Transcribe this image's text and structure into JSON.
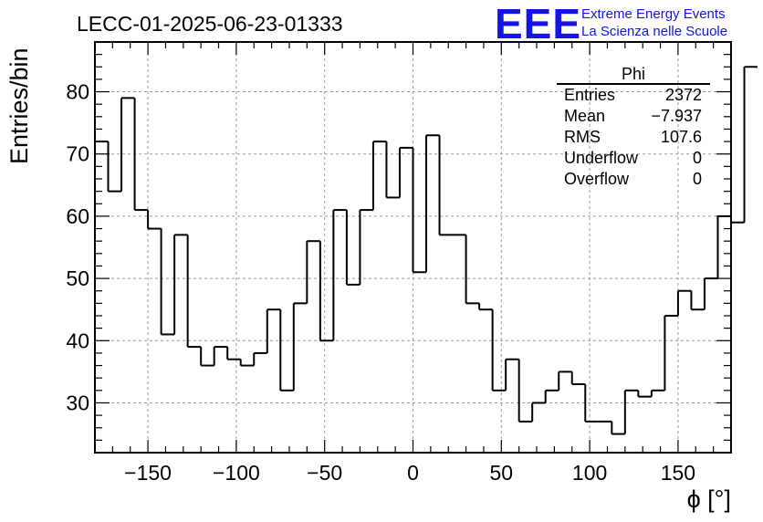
{
  "chart_data": {
    "type": "bar",
    "title": "LECC-01-2025-06-23-01333",
    "xlabel": "ϕ [°]",
    "ylabel": "Entries/bin",
    "xlim": [
      -180,
      180
    ],
    "ylim": [
      22,
      88
    ],
    "grid": true,
    "xticks": [
      -150,
      -100,
      -50,
      0,
      50,
      100,
      150
    ],
    "xtick_labels": [
      "−150",
      "−100",
      "−50",
      "0",
      "50",
      "100",
      "150"
    ],
    "yticks": [
      30,
      40,
      50,
      60,
      70,
      80
    ],
    "bin_edges_start": -180,
    "bin_width": 7.5,
    "values": [
      72,
      64,
      79,
      61,
      58,
      41,
      57,
      39,
      36,
      39,
      37,
      36,
      38,
      45,
      32,
      46,
      56,
      40,
      61,
      49,
      61,
      72,
      63,
      71,
      51,
      73,
      57,
      57,
      46,
      45,
      32,
      37,
      27,
      30,
      32,
      35,
      33,
      27,
      27,
      25,
      32,
      31,
      32,
      44,
      48,
      45,
      50,
      60,
      59,
      84
    ],
    "stats_box": {
      "name": "Phi",
      "rows": [
        {
          "label": "Entries",
          "value": "2372"
        },
        {
          "label": "Mean",
          "value": "−7.937"
        },
        {
          "label": "RMS",
          "value": "107.6"
        },
        {
          "label": "Underflow",
          "value": "0"
        },
        {
          "label": "Overflow",
          "value": "0"
        }
      ]
    }
  },
  "logo": {
    "mark": "EEE",
    "line1": "Extreme Energy Events",
    "line2": "La Scienza nelle Scuole"
  }
}
